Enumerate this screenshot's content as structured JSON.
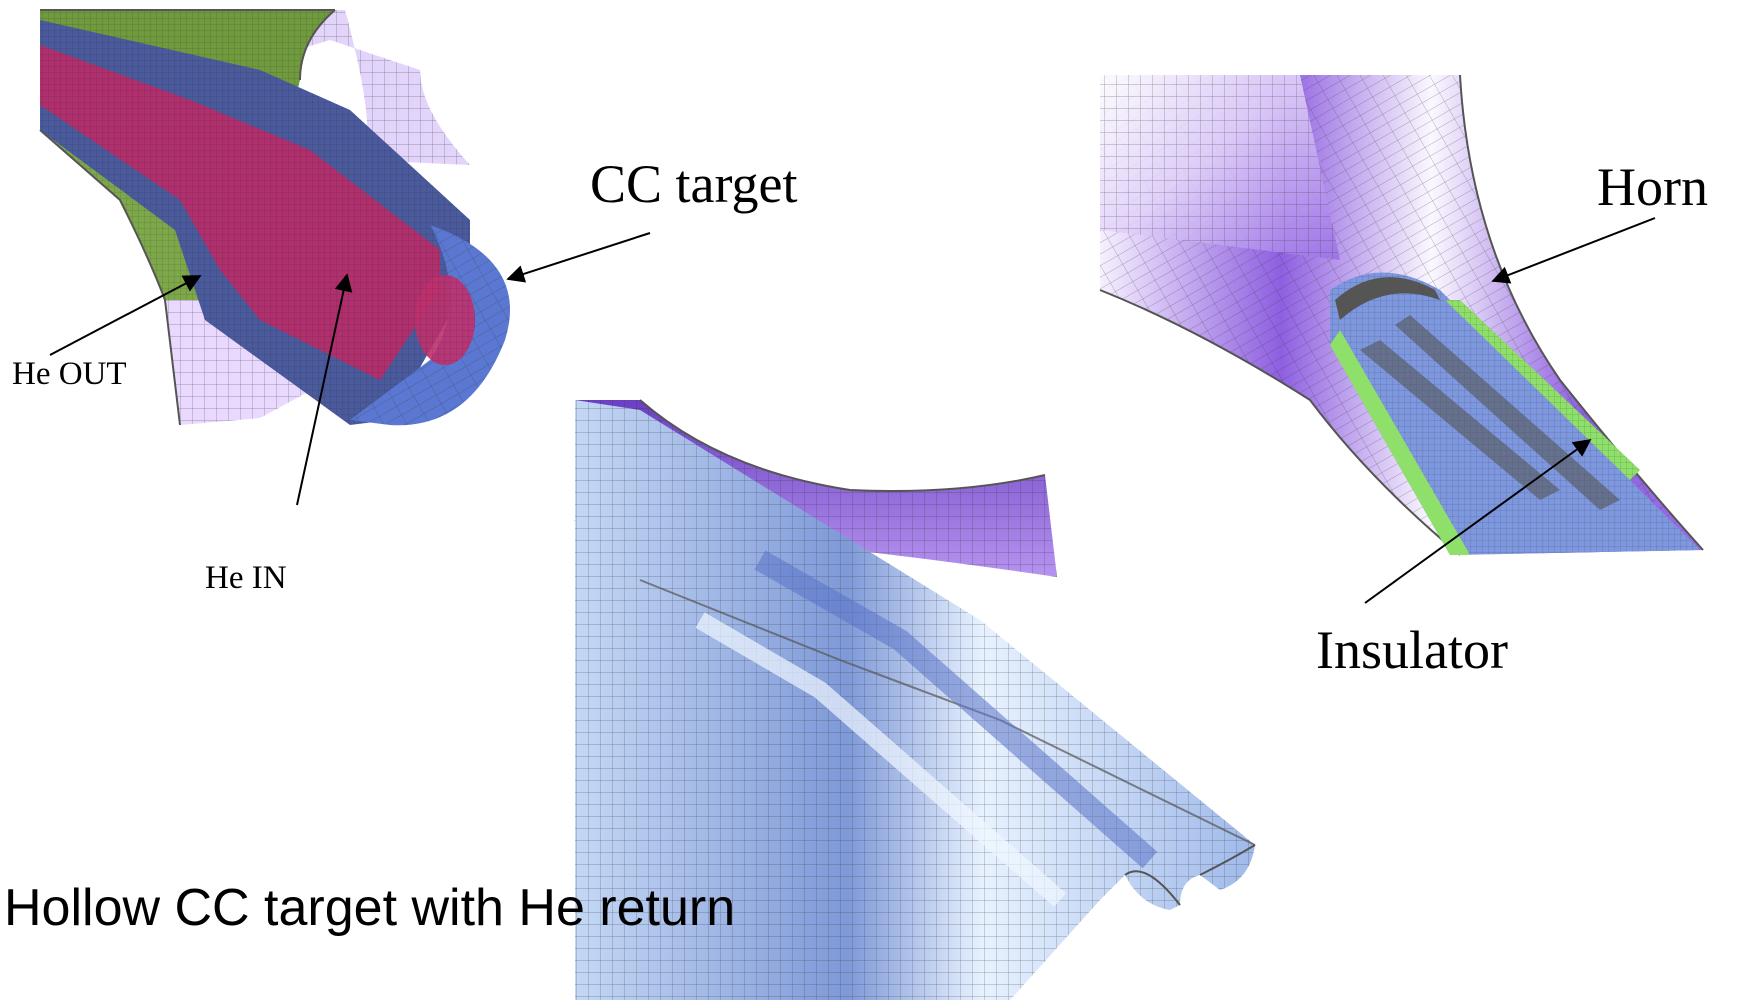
{
  "labels": {
    "cc_target": "CC target",
    "he_out": "He OUT",
    "he_in": "He IN",
    "horn": "Horn",
    "insulator": "Insulator",
    "caption": "Hollow CC target with He return"
  },
  "colors": {
    "horn_violet": "#9a6ee6",
    "horn_light": "#d9c4f7",
    "target_blue": "#4a5a9c",
    "target_core": "#b0306e",
    "cap_blue": "#5a78d2",
    "return_green": "#6f9a3e",
    "insulator_green": "#8fe06a",
    "pale_blue": "#a9c6ee"
  }
}
